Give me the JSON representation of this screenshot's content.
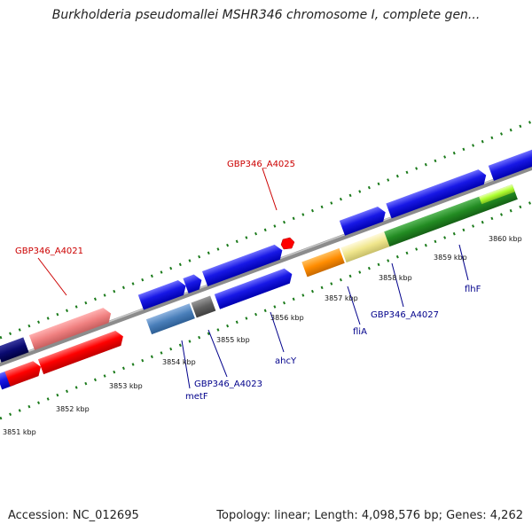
{
  "title": "Burkholderia pseudomallei MSHR346 chromosome I, complete gen...",
  "footer": {
    "accession": "Accession: NC_012695",
    "summary": "Topology: linear; Length: 4,098,576 bp; Genes: 4,262"
  },
  "scale_labels": [
    "3851 kbp",
    "3852 kbp",
    "3853 kbp",
    "3854 kbp",
    "3855 kbp",
    "3856 kbp",
    "3857 kbp",
    "3858 kbp",
    "3859 kbp",
    "3860 kbp"
  ],
  "gene_labels": {
    "gbp4021": "GBP346_A4021",
    "gbp4025": "GBP346_A4025",
    "gbp4023": "GBP346_A4023",
    "gbp4027": "GBP346_A4027",
    "metF": "metF",
    "ahcY": "ahcY",
    "fliA": "fliA",
    "flhF": "flhF"
  },
  "colors": {
    "red_label": "#cc0000",
    "blue_label": "#00008b",
    "tick_green": "#1a7a1a",
    "backbone": "#8c8c8c"
  }
}
